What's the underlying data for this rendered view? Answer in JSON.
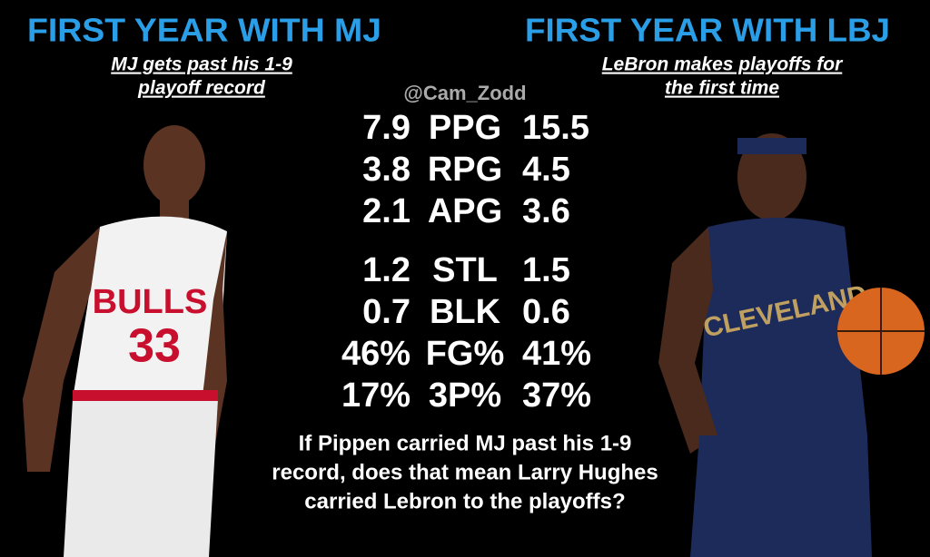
{
  "left": {
    "title": "FIRST YEAR WITH MJ",
    "subtitle": [
      "MJ gets past his 1-9",
      "playoff record"
    ]
  },
  "right": {
    "title": "FIRST YEAR WITH LBJ",
    "subtitle": [
      "LeBron makes playoffs for",
      "the first time"
    ]
  },
  "watermark": "@Cam_Zodd",
  "stats": {
    "groups": [
      [
        {
          "left": "7.9",
          "stat": "PPG",
          "right": "15.5",
          "better": "right"
        },
        {
          "left": "3.8",
          "stat": "RPG",
          "right": "4.5",
          "better": "right"
        },
        {
          "left": "2.1",
          "stat": "APG",
          "right": "3.6",
          "better": "right"
        }
      ],
      [
        {
          "left": "1.2",
          "stat": "STL",
          "right": "1.5",
          "better": "right"
        },
        {
          "left": "0.7",
          "stat": "BLK",
          "right": "0.6",
          "better": "left"
        },
        {
          "left": "46%",
          "stat": "FG%",
          "right": "41%",
          "better": "left"
        },
        {
          "left": "17%",
          "stat": "3P%",
          "right": "37%",
          "better": "right"
        }
      ]
    ]
  },
  "question": [
    "If Pippen carried MJ past his 1-9",
    "record, does that mean Larry Hughes",
    "carried Lebron to the playoffs?"
  ]
}
